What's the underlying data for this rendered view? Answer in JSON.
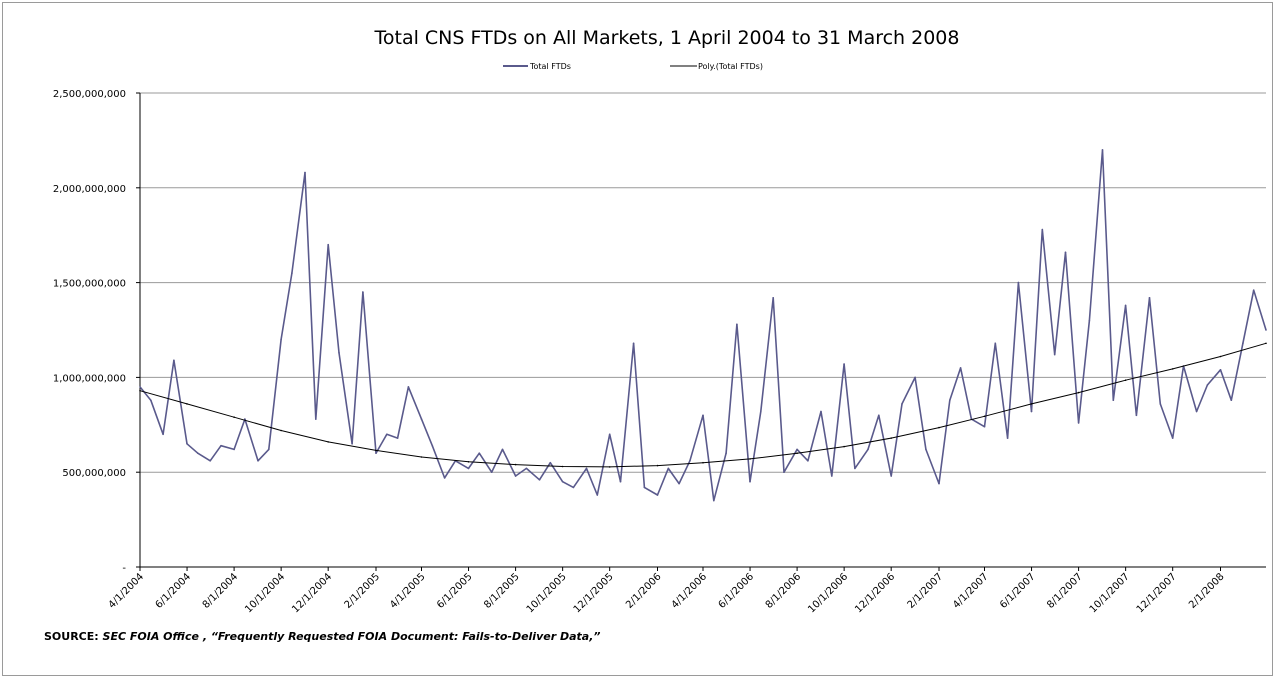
{
  "chart_data": {
    "type": "line",
    "title": "Total CNS FTDs on All Markets, 1 April 2004 to 31 March 2008",
    "xlabel": "",
    "ylabel": "",
    "x_start": "4/1/2004",
    "x_end": "3/31/2008",
    "ylim": [
      0,
      2500000000
    ],
    "y_ticks": [
      {
        "value": 0,
        "label": "-"
      },
      {
        "value": 500000000,
        "label": "500,000,000"
      },
      {
        "value": 1000000000,
        "label": "1,000,000,000"
      },
      {
        "value": 1500000000,
        "label": "1,500,000,000"
      },
      {
        "value": 2000000000,
        "label": "2,000,000,000"
      },
      {
        "value": 2500000000,
        "label": "2,500,000,000"
      }
    ],
    "x_tick_labels": [
      "4/1/2004",
      "6/1/2004",
      "8/1/2004",
      "10/1/2004",
      "12/1/2004",
      "2/1/2005",
      "4/1/2005",
      "6/1/2005",
      "8/1/2005",
      "10/1/2005",
      "12/1/2005",
      "2/1/2006",
      "4/1/2006",
      "6/1/2006",
      "8/1/2006",
      "10/1/2006",
      "12/1/2006",
      "2/1/2007",
      "4/1/2007",
      "6/1/2007",
      "8/1/2007",
      "10/1/2007",
      "12/1/2007",
      "2/1/2008"
    ],
    "grid": "horizontal",
    "legend_position": "top",
    "colors": {
      "total": "#5a5a8c",
      "poly": "#000000",
      "grid": "#9a9a9a"
    },
    "series": [
      {
        "name": "Total FTDs",
        "x": [
          "4/1/2004",
          "4/15/2004",
          "5/1/2004",
          "5/15/2004",
          "6/1/2004",
          "6/15/2004",
          "7/1/2004",
          "7/15/2004",
          "8/1/2004",
          "8/15/2004",
          "9/1/2004",
          "9/15/2004",
          "10/1/2004",
          "10/15/2004",
          "11/1/2004",
          "11/15/2004",
          "12/1/2004",
          "12/15/2004",
          "1/1/2005",
          "1/15/2005",
          "2/1/2005",
          "2/15/2005",
          "3/1/2005",
          "3/15/2005",
          "4/1/2005",
          "4/15/2005",
          "5/1/2005",
          "5/15/2005",
          "6/1/2005",
          "6/15/2005",
          "7/1/2005",
          "7/15/2005",
          "8/1/2005",
          "8/15/2005",
          "9/1/2005",
          "9/15/2005",
          "10/1/2005",
          "10/15/2005",
          "11/1/2005",
          "11/15/2005",
          "12/1/2005",
          "12/15/2005",
          "1/1/2006",
          "1/15/2006",
          "2/1/2006",
          "2/15/2006",
          "3/1/2006",
          "3/15/2006",
          "4/1/2006",
          "4/15/2006",
          "5/1/2006",
          "5/15/2006",
          "6/1/2006",
          "6/15/2006",
          "7/1/2006",
          "7/15/2006",
          "8/1/2006",
          "8/15/2006",
          "9/1/2006",
          "9/15/2006",
          "10/1/2006",
          "10/15/2006",
          "11/1/2006",
          "11/15/2006",
          "12/1/2006",
          "12/15/2006",
          "1/1/2007",
          "1/15/2007",
          "2/1/2007",
          "2/15/2007",
          "3/1/2007",
          "3/15/2007",
          "4/1/2007",
          "4/15/2007",
          "5/1/2007",
          "5/15/2007",
          "6/1/2007",
          "6/15/2007",
          "7/1/2007",
          "7/15/2007",
          "8/1/2007",
          "8/15/2007",
          "9/1/2007",
          "9/15/2007",
          "10/1/2007",
          "10/15/2007",
          "11/1/2007",
          "11/15/2007",
          "12/1/2007",
          "12/15/2007",
          "1/1/2008",
          "1/15/2008",
          "2/1/2008",
          "2/15/2008",
          "3/1/2008",
          "3/15/2008",
          "3/31/2008"
        ],
        "values": [
          950000000,
          880000000,
          700000000,
          1090000000,
          650000000,
          600000000,
          560000000,
          640000000,
          620000000,
          780000000,
          560000000,
          620000000,
          1200000000,
          1550000000,
          2080000000,
          780000000,
          1700000000,
          1130000000,
          650000000,
          1450000000,
          600000000,
          700000000,
          680000000,
          950000000,
          780000000,
          640000000,
          470000000,
          560000000,
          520000000,
          600000000,
          500000000,
          620000000,
          480000000,
          520000000,
          460000000,
          550000000,
          450000000,
          420000000,
          520000000,
          380000000,
          700000000,
          450000000,
          1180000000,
          420000000,
          380000000,
          520000000,
          440000000,
          560000000,
          800000000,
          350000000,
          600000000,
          1280000000,
          450000000,
          820000000,
          1420000000,
          500000000,
          620000000,
          560000000,
          820000000,
          480000000,
          1070000000,
          520000000,
          620000000,
          800000000,
          480000000,
          860000000,
          1000000000,
          620000000,
          440000000,
          880000000,
          1050000000,
          780000000,
          740000000,
          1180000000,
          680000000,
          1500000000,
          820000000,
          1780000000,
          1120000000,
          1660000000,
          760000000,
          1300000000,
          2200000000,
          880000000,
          1380000000,
          800000000,
          1420000000,
          860000000,
          680000000,
          1060000000,
          820000000,
          960000000,
          1040000000,
          880000000,
          1180000000,
          1460000000,
          1250000000
        ]
      },
      {
        "name": "Poly.(Total FTDs)",
        "x": [
          "4/1/2004",
          "6/1/2004",
          "8/1/2004",
          "10/1/2004",
          "12/1/2004",
          "2/1/2005",
          "4/1/2005",
          "6/1/2005",
          "8/1/2005",
          "10/1/2005",
          "12/1/2005",
          "2/1/2006",
          "4/1/2006",
          "6/1/2006",
          "8/1/2006",
          "10/1/2006",
          "12/1/2006",
          "2/1/2007",
          "4/1/2007",
          "6/1/2007",
          "8/1/2007",
          "10/1/2007",
          "12/1/2007",
          "2/1/2008",
          "3/31/2008"
        ],
        "values": [
          930000000,
          860000000,
          790000000,
          720000000,
          660000000,
          615000000,
          580000000,
          555000000,
          540000000,
          530000000,
          528000000,
          535000000,
          550000000,
          570000000,
          600000000,
          635000000,
          680000000,
          735000000,
          795000000,
          860000000,
          920000000,
          985000000,
          1045000000,
          1110000000,
          1180000000
        ]
      }
    ],
    "legend": [
      {
        "label": "Total FTDs"
      },
      {
        "label": "Poly.(Total FTDs)"
      }
    ]
  },
  "source": {
    "prefix": "SOURCE:",
    "text": "SEC FOIA  Office , “Frequently Requested FOIA Document: Fails-to-Deliver Data,”"
  }
}
